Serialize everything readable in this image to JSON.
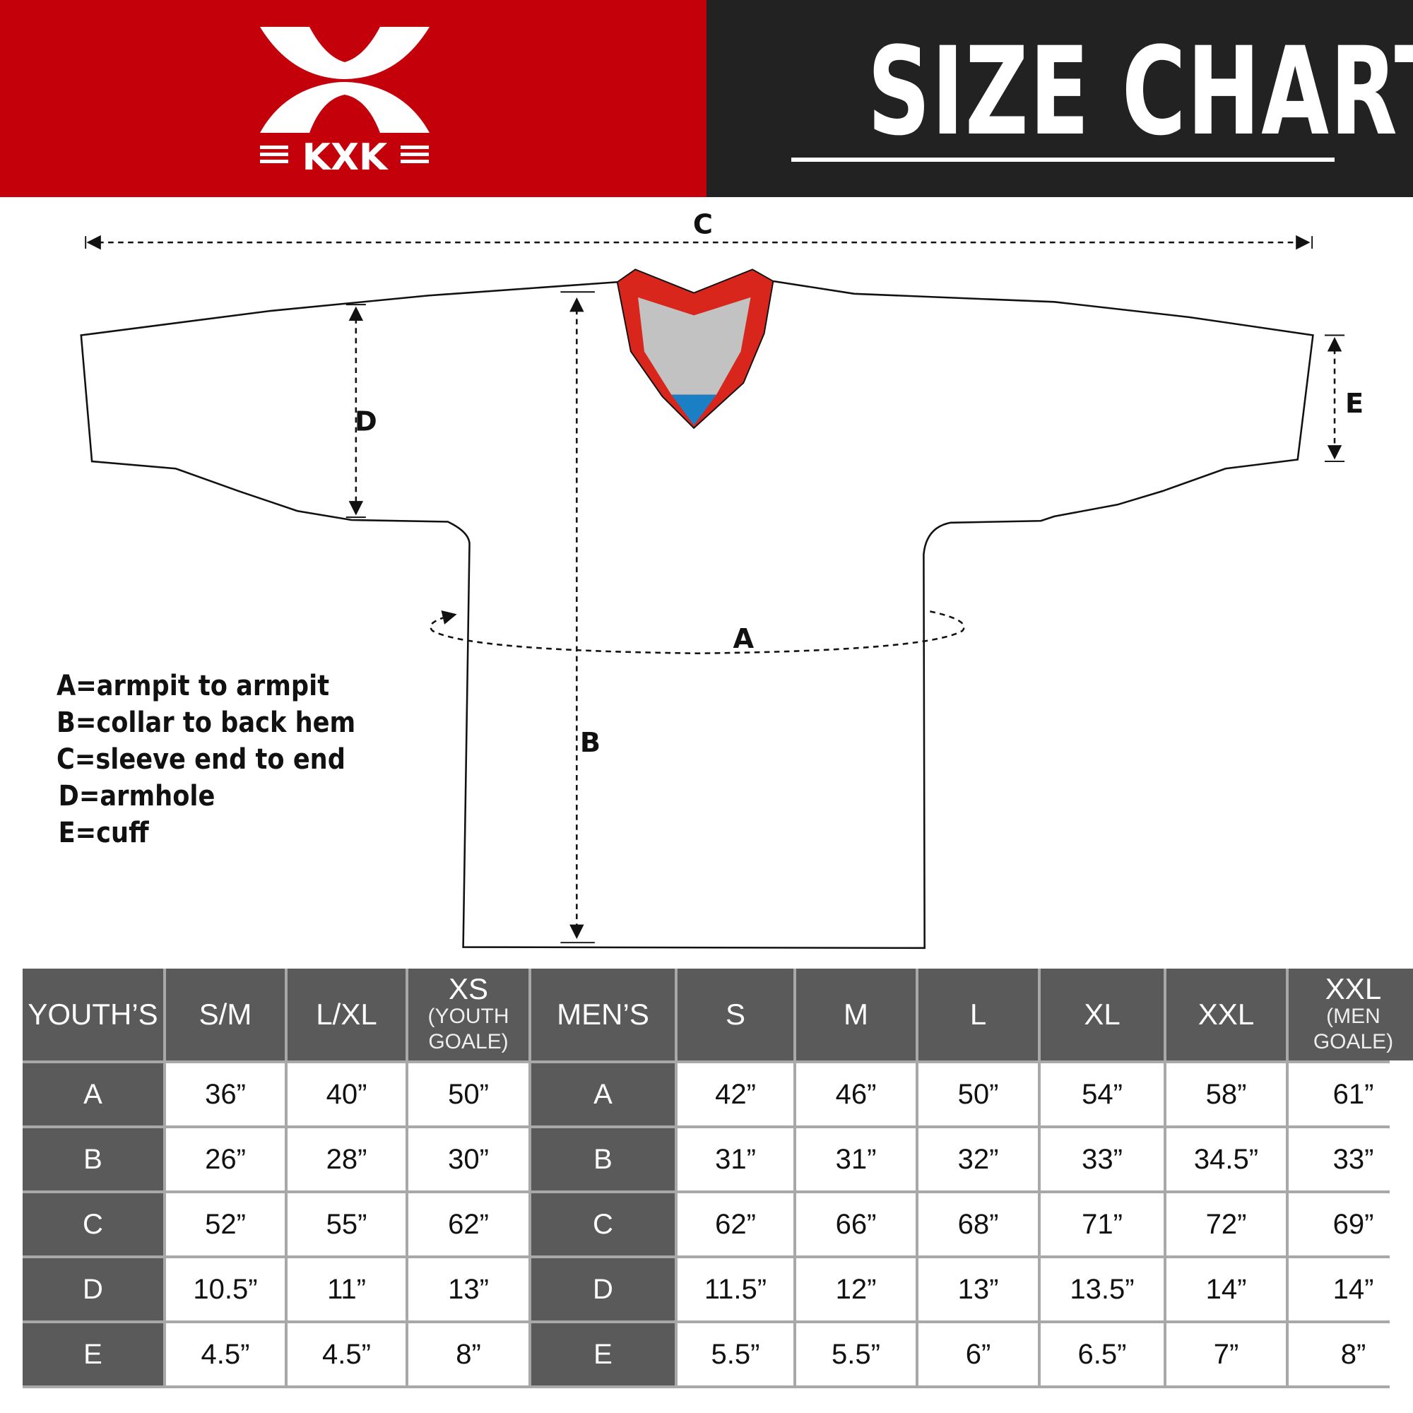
{
  "brand": {
    "logo_text": "KXK",
    "color_red": "#c4000a",
    "color_dark": "#222222"
  },
  "header": {
    "title": "SIZE CHART"
  },
  "diagram": {
    "labels": {
      "a": "A",
      "b": "B",
      "c": "C",
      "d": "D",
      "e": "E"
    },
    "collar_colors": {
      "trim": "#d9261c",
      "inner": "#c2c2c2",
      "tag": "#1a7fc4"
    }
  },
  "legend": [
    "A=armpit to armpit",
    "B=collar to back hem",
    "C=sleeve end to end",
    "D=armhole",
    "E=cuff"
  ],
  "table": {
    "youth_header": "YOUTH’S",
    "youth_sizes": [
      {
        "label": "S/M",
        "sub": ""
      },
      {
        "label": "L/XL",
        "sub": ""
      },
      {
        "label": "XS",
        "sub": "(YOUTH GOALE)"
      }
    ],
    "men_header": "MEN’S",
    "men_sizes": [
      {
        "label": "S",
        "sub": ""
      },
      {
        "label": "M",
        "sub": ""
      },
      {
        "label": "L",
        "sub": ""
      },
      {
        "label": "XL",
        "sub": ""
      },
      {
        "label": "XXL",
        "sub": ""
      },
      {
        "label": "XXL",
        "sub": "(MEN GOALE)"
      }
    ],
    "rows": [
      {
        "key": "A",
        "youth": [
          "36”",
          "40”",
          "50”"
        ],
        "men": [
          "42”",
          "46”",
          "50”",
          "54”",
          "58”",
          "61”"
        ]
      },
      {
        "key": "B",
        "youth": [
          "26”",
          "28”",
          "30”"
        ],
        "men": [
          "31”",
          "31”",
          "32”",
          "33”",
          "34.5”",
          "33”"
        ]
      },
      {
        "key": "C",
        "youth": [
          "52”",
          "55”",
          "62”"
        ],
        "men": [
          "62”",
          "66”",
          "68”",
          "71”",
          "72”",
          "69”"
        ]
      },
      {
        "key": "D",
        "youth": [
          "10.5”",
          "11”",
          "13”"
        ],
        "men": [
          "11.5”",
          "12”",
          "13”",
          "13.5”",
          "14”",
          "14”"
        ]
      },
      {
        "key": "E",
        "youth": [
          "4.5”",
          "4.5”",
          "8”"
        ],
        "men": [
          "5.5”",
          "5.5”",
          "6”",
          "6.5”",
          "7”",
          "8”"
        ]
      }
    ]
  }
}
